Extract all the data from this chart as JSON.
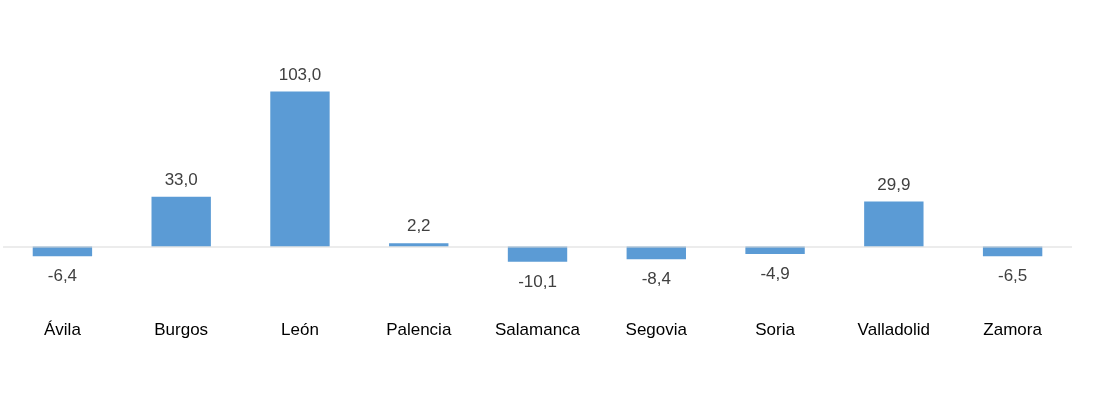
{
  "chart_data": {
    "type": "bar",
    "categories": [
      "Ávila",
      "Burgos",
      "León",
      "Palencia",
      "Salamanca",
      "Segovia",
      "Soria",
      "Valladolid",
      "Zamora"
    ],
    "values": [
      -6.4,
      33.0,
      103.0,
      2.2,
      -10.1,
      -8.4,
      -4.9,
      29.9,
      -6.5
    ],
    "value_labels": [
      "-6,4",
      "33,0",
      "103,0",
      "2,2",
      "-10,1",
      "-8,4",
      "-4,9",
      "29,9",
      "-6,5"
    ],
    "color": "#5b9bd5",
    "grid": false,
    "legend": false
  }
}
